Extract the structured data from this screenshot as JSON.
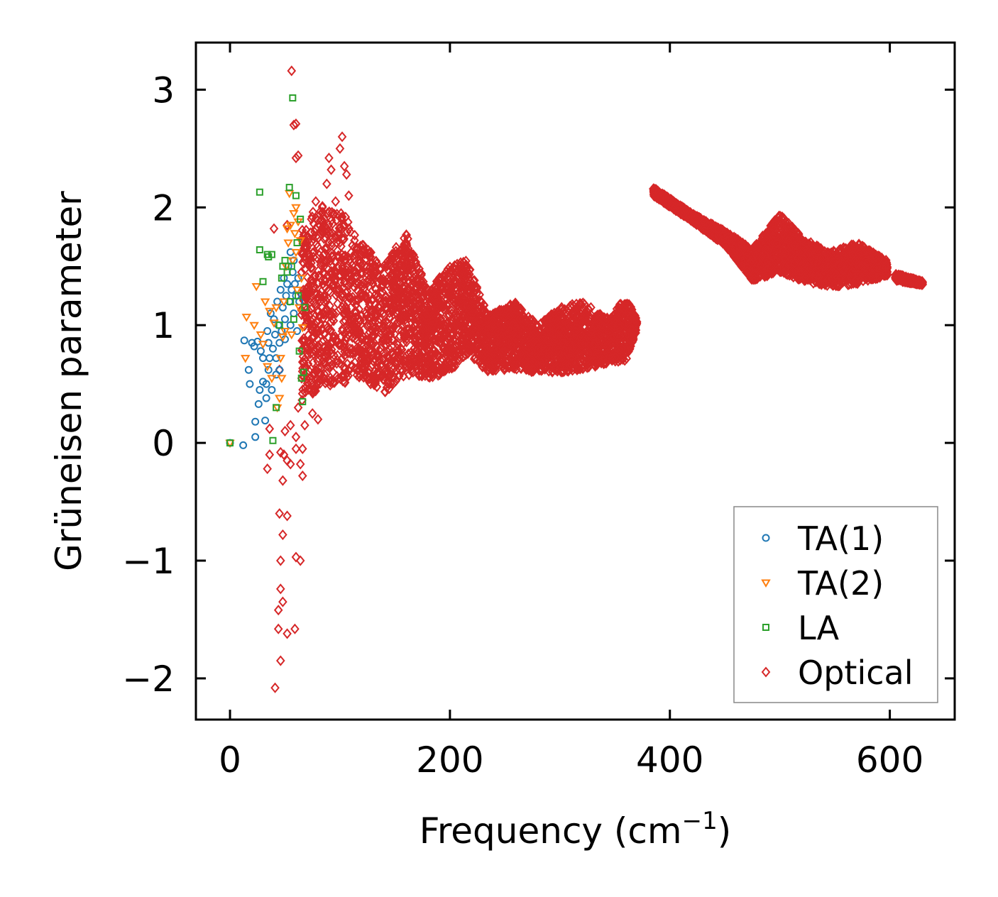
{
  "chart_data": {
    "type": "scatter",
    "title": "",
    "xlabel": "Frequency (cm",
    "xlabel_sup": "−1",
    "xlabel_close": ")",
    "ylabel": "Grüneisen parameter",
    "xlim": [
      -31,
      659
    ],
    "ylim": [
      -2.35,
      3.4
    ],
    "xticks": [
      0,
      200,
      400,
      600
    ],
    "xtick_labels": [
      "0",
      "200",
      "400",
      "600"
    ],
    "yticks": [
      -2,
      -1,
      0,
      1,
      2,
      3
    ],
    "ytick_labels": [
      "−2",
      "−1",
      "0",
      "1",
      "2",
      "3"
    ],
    "grid": false,
    "legend_position": "lower-right",
    "series": [
      {
        "name": "TA(1)",
        "marker": "circle",
        "color": "#1f77b4",
        "points": [
          [
            0,
            0
          ],
          [
            12,
            -0.02
          ],
          [
            13,
            0.87
          ],
          [
            17,
            0.62
          ],
          [
            18,
            0.5
          ],
          [
            20,
            0.85
          ],
          [
            22,
            0.82
          ],
          [
            23,
            0.18
          ],
          [
            23,
            0.05
          ],
          [
            25,
            0.86
          ],
          [
            26,
            0.33
          ],
          [
            27,
            0.45
          ],
          [
            28,
            0.78
          ],
          [
            30,
            0.72
          ],
          [
            30,
            0.52
          ],
          [
            32,
            0.19
          ],
          [
            33,
            0.5
          ],
          [
            33,
            0.38
          ],
          [
            34,
            0.95
          ],
          [
            35,
            0.62
          ],
          [
            35,
            0.85
          ],
          [
            36,
            0.72
          ],
          [
            37,
            1.1
          ],
          [
            38,
            0.45
          ],
          [
            39,
            0.8
          ],
          [
            40,
            1.05
          ],
          [
            41,
            0.92
          ],
          [
            42,
            0.72
          ],
          [
            42,
            0.58
          ],
          [
            43,
            1.2
          ],
          [
            44,
            1.0
          ],
          [
            45,
            0.85
          ],
          [
            45,
            0.62
          ],
          [
            46,
            1.3
          ],
          [
            47,
            0.95
          ],
          [
            48,
            1.15
          ],
          [
            49,
            1.4
          ],
          [
            50,
            1.05
          ],
          [
            50,
            0.88
          ],
          [
            51,
            1.25
          ],
          [
            52,
            1.35
          ],
          [
            53,
            1.5
          ],
          [
            54,
            1.2
          ],
          [
            55,
            1.62
          ],
          [
            55,
            1.0
          ],
          [
            56,
            1.3
          ],
          [
            57,
            1.45
          ],
          [
            58,
            1.1
          ],
          [
            58,
            1.55
          ],
          [
            59,
            1.35
          ],
          [
            60,
            1.25
          ],
          [
            61,
            0.95
          ],
          [
            62,
            1.4
          ],
          [
            63,
            1.2
          ]
        ]
      },
      {
        "name": "TA(2)",
        "marker": "triangle-down",
        "color": "#ff7f0e",
        "points": [
          [
            0,
            0
          ],
          [
            14,
            0.72
          ],
          [
            15,
            1.07
          ],
          [
            22,
            1.0
          ],
          [
            24,
            1.33
          ],
          [
            28,
            0.92
          ],
          [
            30,
            0.84
          ],
          [
            32,
            1.2
          ],
          [
            34,
            0.65
          ],
          [
            36,
            1.12
          ],
          [
            38,
            0.55
          ],
          [
            40,
            1.02
          ],
          [
            42,
            1.15
          ],
          [
            43,
            0.3
          ],
          [
            45,
            0.38
          ],
          [
            46,
            0.72
          ],
          [
            47,
            0.55
          ],
          [
            48,
            0.9
          ],
          [
            49,
            1.2
          ],
          [
            50,
            0.95
          ],
          [
            51,
            1.5
          ],
          [
            52,
            1.82
          ],
          [
            53,
            1.7
          ],
          [
            54,
            2.12
          ],
          [
            55,
            1.85
          ],
          [
            56,
            0.92
          ],
          [
            57,
            1.55
          ],
          [
            58,
            1.95
          ],
          [
            59,
            1.78
          ],
          [
            60,
            2.0
          ],
          [
            60,
            1.62
          ],
          [
            61,
            1.3
          ],
          [
            62,
            1.88
          ],
          [
            63,
            1.15
          ],
          [
            64,
            1.72
          ],
          [
            65,
            1.4
          ],
          [
            66,
            0.98
          ]
        ]
      },
      {
        "name": "LA",
        "marker": "square",
        "color": "#2ca02c",
        "points": [
          [
            0,
            0
          ],
          [
            27,
            2.13
          ],
          [
            27,
            1.64
          ],
          [
            30,
            1.37
          ],
          [
            34,
            1.6
          ],
          [
            35,
            1.58
          ],
          [
            38,
            1.6
          ],
          [
            39,
            0.02
          ],
          [
            42,
            0.3
          ],
          [
            45,
            1.0
          ],
          [
            47,
            1.4
          ],
          [
            48,
            1.5
          ],
          [
            50,
            1.55
          ],
          [
            52,
            1.45
          ],
          [
            54,
            2.17
          ],
          [
            55,
            1.2
          ],
          [
            56,
            1.5
          ],
          [
            57,
            2.93
          ],
          [
            58,
            1.05
          ],
          [
            60,
            2.1
          ],
          [
            61,
            1.7
          ],
          [
            62,
            1.25
          ],
          [
            63,
            0.78
          ],
          [
            64,
            1.9
          ],
          [
            65,
            0.55
          ],
          [
            66,
            0.35
          ],
          [
            67,
            0.6
          ],
          [
            68,
            1.15
          ]
        ]
      },
      {
        "name": "Optical",
        "marker": "diamond",
        "color": "#d62728",
        "points": [
          [
            56,
            3.16
          ],
          [
            58,
            2.7
          ],
          [
            60,
            2.71
          ],
          [
            60,
            2.42
          ],
          [
            62,
            2.44
          ],
          [
            52,
            1.85
          ],
          [
            40,
            1.82
          ],
          [
            45,
            0.62
          ],
          [
            46,
            -0.08
          ],
          [
            49,
            -0.1
          ],
          [
            52,
            -0.15
          ],
          [
            55,
            -0.18
          ],
          [
            60,
            -0.05
          ],
          [
            66,
            -0.28
          ],
          [
            66,
            -0.05
          ],
          [
            64,
            -0.18
          ],
          [
            36,
            -0.1
          ],
          [
            34,
            -0.22
          ],
          [
            48,
            -0.32
          ],
          [
            45,
            -0.6
          ],
          [
            52,
            -0.62
          ],
          [
            48,
            -0.78
          ],
          [
            46,
            -1.0
          ],
          [
            60,
            -0.97
          ],
          [
            64,
            -1.0
          ],
          [
            46,
            -1.24
          ],
          [
            48,
            -1.35
          ],
          [
            44,
            -1.42
          ],
          [
            44,
            -1.58
          ],
          [
            52,
            -1.62
          ],
          [
            59,
            -1.58
          ],
          [
            46,
            -1.85
          ],
          [
            41,
            -2.08
          ],
          [
            36,
            0.12
          ],
          [
            50,
            0.1
          ],
          [
            55,
            0.15
          ],
          [
            60,
            0.05
          ],
          [
            68,
            0.15
          ],
          [
            62,
            0.3
          ],
          [
            75,
            0.25
          ],
          [
            80,
            0.2
          ],
          [
            70,
            1.7
          ],
          [
            74,
            1.9
          ],
          [
            78,
            2.05
          ],
          [
            84,
            2.0
          ],
          [
            88,
            2.2
          ],
          [
            90,
            2.42
          ],
          [
            92,
            2.32
          ],
          [
            96,
            2.05
          ],
          [
            102,
            2.6
          ],
          [
            104,
            2.35
          ],
          [
            108,
            2.1
          ],
          [
            100,
            2.5
          ],
          [
            106,
            2.28
          ]
        ],
        "bands": [
          {
            "x_from": 65,
            "x_to": 200,
            "upper": [
              [
                65,
                1.85
              ],
              [
                80,
                2.02
              ],
              [
                100,
                2.0
              ],
              [
                120,
                1.7
              ],
              [
                140,
                1.52
              ],
              [
                160,
                1.8
              ],
              [
                180,
                1.3
              ],
              [
                200,
                1.5
              ]
            ],
            "lower": [
              [
                65,
                0.35
              ],
              [
                80,
                0.45
              ],
              [
                100,
                0.5
              ],
              [
                120,
                0.55
              ],
              [
                140,
                0.42
              ],
              [
                160,
                0.58
              ],
              [
                180,
                0.55
              ],
              [
                200,
                0.6
              ]
            ]
          },
          {
            "x_from": 200,
            "x_to": 370,
            "upper": [
              [
                200,
                1.5
              ],
              [
                215,
                1.55
              ],
              [
                235,
                1.08
              ],
              [
                260,
                1.2
              ],
              [
                280,
                1.0
              ],
              [
                300,
                1.15
              ],
              [
                320,
                1.2
              ],
              [
                345,
                1.05
              ],
              [
                360,
                1.25
              ],
              [
                370,
                1.05
              ]
            ],
            "lower": [
              [
                200,
                0.6
              ],
              [
                215,
                0.75
              ],
              [
                235,
                0.6
              ],
              [
                260,
                0.62
              ],
              [
                280,
                0.6
              ],
              [
                300,
                0.6
              ],
              [
                320,
                0.62
              ],
              [
                345,
                0.68
              ],
              [
                360,
                0.7
              ],
              [
                370,
                0.95
              ]
            ]
          },
          {
            "x_from": 385,
            "x_to": 598,
            "upper": [
              [
                385,
                2.17
              ],
              [
                420,
                1.95
              ],
              [
                450,
                1.8
              ],
              [
                475,
                1.65
              ],
              [
                500,
                1.95
              ],
              [
                520,
                1.75
              ],
              [
                545,
                1.62
              ],
              [
                570,
                1.7
              ],
              [
                598,
                1.55
              ]
            ],
            "lower": [
              [
                385,
                2.1
              ],
              [
                420,
                1.88
              ],
              [
                450,
                1.68
              ],
              [
                475,
                1.38
              ],
              [
                500,
                1.45
              ],
              [
                520,
                1.38
              ],
              [
                545,
                1.32
              ],
              [
                570,
                1.35
              ],
              [
                598,
                1.42
              ]
            ]
          },
          {
            "x_from": 605,
            "x_to": 630,
            "upper": [
              [
                605,
                1.44
              ],
              [
                630,
                1.37
              ]
            ],
            "lower": [
              [
                605,
                1.38
              ],
              [
                630,
                1.34
              ]
            ]
          }
        ]
      }
    ]
  }
}
